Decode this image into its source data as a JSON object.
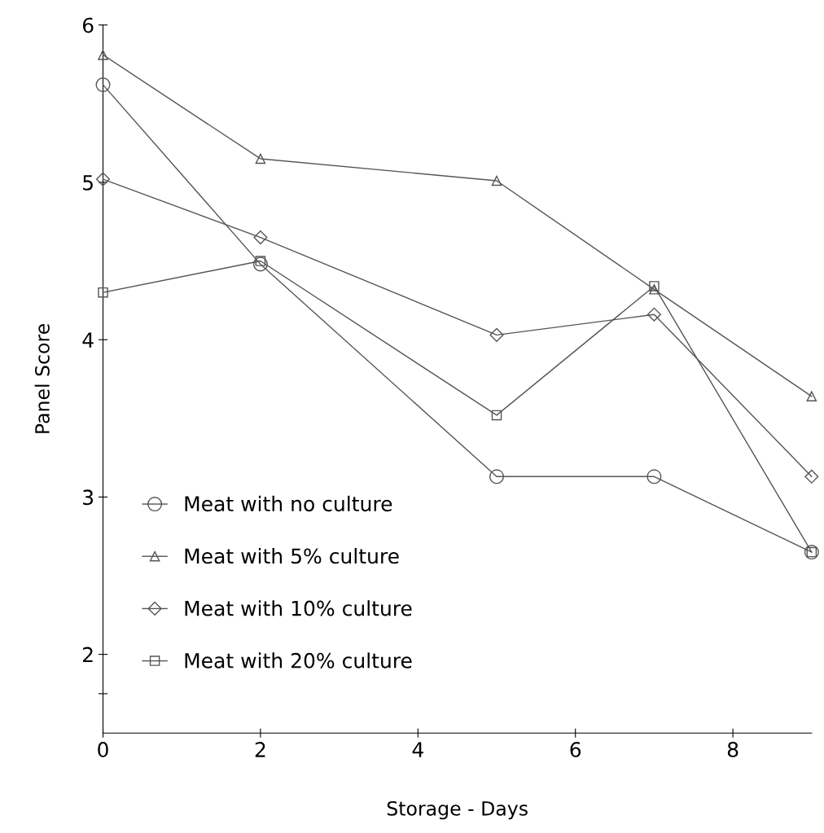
{
  "chart_data": {
    "type": "line",
    "xlabel": "Storage - Days",
    "ylabel": "Panel Score",
    "x": [
      0,
      2,
      5,
      7,
      9
    ],
    "series": [
      {
        "name": "Meat with no culture",
        "color": "#555555",
        "marker": "circle",
        "values": [
          5.62,
          4.48,
          3.13,
          3.13,
          2.65
        ]
      },
      {
        "name": "Meat with 5% culture",
        "color": "#555555",
        "marker": "triangle",
        "values": [
          5.81,
          5.15,
          5.01,
          4.32,
          3.64
        ]
      },
      {
        "name": "Meat with 10% culture",
        "color": "#555555",
        "marker": "diamond",
        "values": [
          5.02,
          4.65,
          4.03,
          4.16,
          3.13
        ]
      },
      {
        "name": "Meat with 20% culture",
        "color": "#555555",
        "marker": "square",
        "values": [
          4.3,
          4.5,
          3.52,
          4.34,
          2.65
        ]
      }
    ],
    "xlim": [
      0,
      9
    ],
    "xticks": [
      0,
      2,
      4,
      6,
      8
    ],
    "ylim": [
      1.5,
      6
    ],
    "yticks": [
      {
        "value": 1.75,
        "label": null
      },
      2,
      3,
      4,
      5,
      6
    ],
    "grid": false,
    "legend": "bottom left",
    "line_style": "solid"
  }
}
